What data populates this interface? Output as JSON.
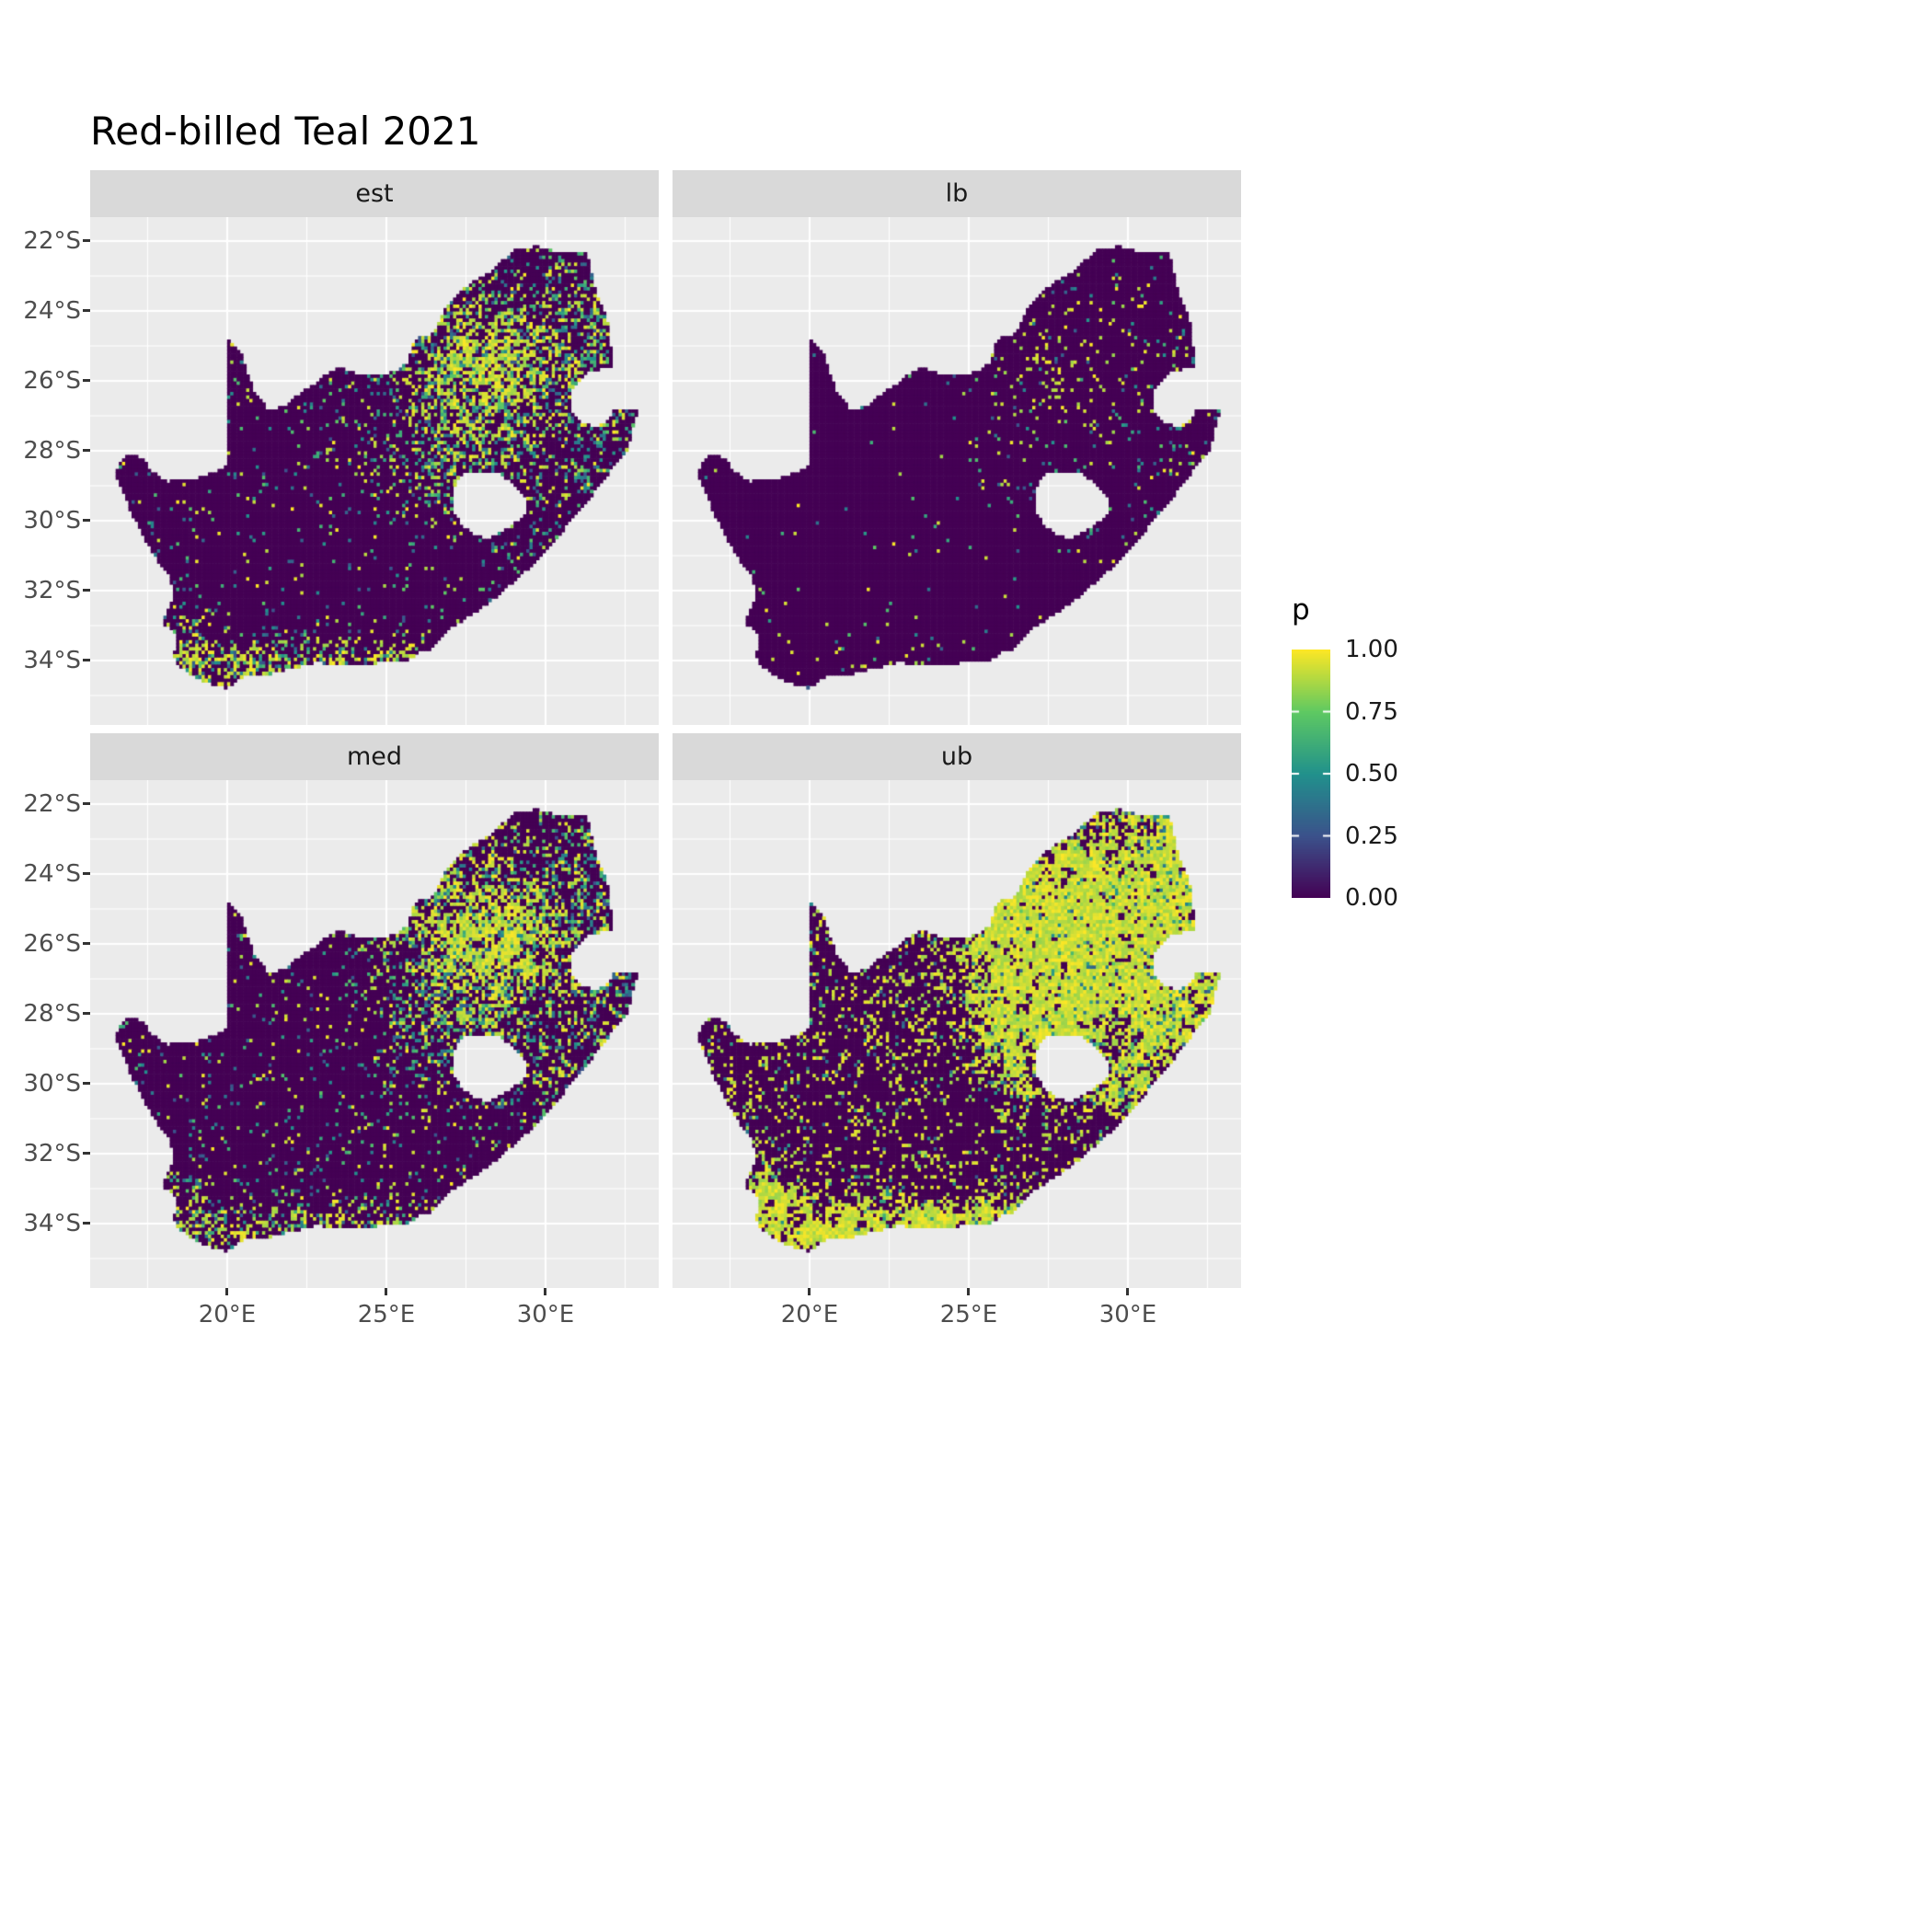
{
  "title": "Red-billed Teal 2021",
  "colors": {
    "panel_bg": "#EBEBEB",
    "strip_bg": "#D9D9D9",
    "grid": "#FFFFFF",
    "axis_text": "#4D4D4D",
    "strip_text": "#1A1A1A",
    "title_text": "#000000",
    "map_zero_fill": "#440154"
  },
  "chart_data": {
    "type": "heatmap",
    "subtype": "faceted-raster-map",
    "title": "Red-billed Teal 2021",
    "region": "South Africa",
    "facets": [
      {
        "label": "est"
      },
      {
        "label": "lb"
      },
      {
        "label": "med"
      },
      {
        "label": "ub"
      }
    ],
    "x_axis": {
      "ticks": [
        {
          "label": "20°E",
          "value": 20
        },
        {
          "label": "25°E",
          "value": 25
        },
        {
          "label": "30°E",
          "value": 30
        }
      ],
      "range": [
        15.694,
        33.56
      ]
    },
    "y_axis": {
      "ticks": [
        {
          "label": "22°S",
          "value": -22
        },
        {
          "label": "24°S",
          "value": -24
        },
        {
          "label": "26°S",
          "value": -26
        },
        {
          "label": "28°S",
          "value": -28
        },
        {
          "label": "30°S",
          "value": -30
        },
        {
          "label": "32°S",
          "value": -32
        },
        {
          "label": "34°S",
          "value": -34
        }
      ],
      "range": [
        -35.84,
        -21.316
      ]
    },
    "legend": {
      "title": "p",
      "ticks": [
        {
          "label": "1.00",
          "value": 1.0
        },
        {
          "label": "0.75",
          "value": 0.75
        },
        {
          "label": "0.50",
          "value": 0.5
        },
        {
          "label": "0.25",
          "value": 0.25
        },
        {
          "label": "0.00",
          "value": 0.0
        }
      ],
      "palette": "viridis",
      "palette_stops": [
        [
          "0.00",
          "#440154"
        ],
        [
          "0.25",
          "#3B528B"
        ],
        [
          "0.50",
          "#21918C"
        ],
        [
          "0.75",
          "#5EC962"
        ],
        [
          "1.00",
          "#FDE725"
        ]
      ]
    },
    "cell_size_deg": 0.1,
    "outline": [
      [
        16.45,
        -28.58
      ],
      [
        16.9,
        -28.08
      ],
      [
        17.35,
        -28.2
      ],
      [
        17.6,
        -28.55
      ],
      [
        18.1,
        -28.87
      ],
      [
        18.75,
        -28.82
      ],
      [
        19.3,
        -28.72
      ],
      [
        19.98,
        -28.43
      ],
      [
        19.98,
        -24.77
      ],
      [
        20.45,
        -25.25
      ],
      [
        20.65,
        -25.85
      ],
      [
        20.85,
        -26.3
      ],
      [
        21.3,
        -26.85
      ],
      [
        21.8,
        -26.7
      ],
      [
        22.2,
        -26.4
      ],
      [
        22.65,
        -26.15
      ],
      [
        22.9,
        -25.95
      ],
      [
        23.5,
        -25.6
      ],
      [
        24.05,
        -25.78
      ],
      [
        24.7,
        -25.82
      ],
      [
        25.35,
        -25.72
      ],
      [
        25.65,
        -25.48
      ],
      [
        25.9,
        -24.8
      ],
      [
        26.45,
        -24.65
      ],
      [
        26.85,
        -23.9
      ],
      [
        27.2,
        -23.55
      ],
      [
        27.75,
        -23.12
      ],
      [
        28.25,
        -22.87
      ],
      [
        29.05,
        -22.22
      ],
      [
        29.7,
        -22.15
      ],
      [
        30.3,
        -22.3
      ],
      [
        31.3,
        -22.35
      ],
      [
        31.6,
        -23.55
      ],
      [
        31.85,
        -24.0
      ],
      [
        31.98,
        -24.45
      ],
      [
        32.05,
        -25.1
      ],
      [
        32.05,
        -25.61
      ],
      [
        31.35,
        -25.72
      ],
      [
        30.82,
        -26.25
      ],
      [
        30.82,
        -26.85
      ],
      [
        31.15,
        -27.2
      ],
      [
        31.6,
        -27.32
      ],
      [
        31.97,
        -27.1
      ],
      [
        32.12,
        -26.86
      ],
      [
        32.89,
        -26.86
      ],
      [
        32.55,
        -28.0
      ],
      [
        32.0,
        -28.6
      ],
      [
        31.35,
        -29.4
      ],
      [
        30.65,
        -30.15
      ],
      [
        30.05,
        -30.85
      ],
      [
        29.35,
        -31.45
      ],
      [
        28.55,
        -32.1
      ],
      [
        27.8,
        -32.6
      ],
      [
        27.05,
        -33.05
      ],
      [
        26.45,
        -33.65
      ],
      [
        25.95,
        -33.78
      ],
      [
        25.65,
        -34.03
      ],
      [
        25.0,
        -33.97
      ],
      [
        24.45,
        -34.15
      ],
      [
        23.4,
        -34.1
      ],
      [
        22.8,
        -34.05
      ],
      [
        22.1,
        -34.2
      ],
      [
        21.2,
        -34.42
      ],
      [
        20.5,
        -34.45
      ],
      [
        19.98,
        -34.8
      ],
      [
        19.3,
        -34.62
      ],
      [
        18.82,
        -34.37
      ],
      [
        18.45,
        -34.12
      ],
      [
        18.3,
        -33.85
      ],
      [
        18.45,
        -33.3
      ],
      [
        17.95,
        -32.9
      ],
      [
        18.3,
        -32.25
      ],
      [
        18.22,
        -31.66
      ],
      [
        17.6,
        -30.85
      ],
      [
        17.05,
        -29.9
      ],
      [
        16.75,
        -29.25
      ]
    ],
    "lesotho_hole": [
      [
        27.05,
        -29.1
      ],
      [
        27.4,
        -28.62
      ],
      [
        27.95,
        -28.58
      ],
      [
        28.5,
        -28.62
      ],
      [
        28.95,
        -28.9
      ],
      [
        29.3,
        -29.25
      ],
      [
        29.45,
        -29.6
      ],
      [
        29.25,
        -29.95
      ],
      [
        28.8,
        -30.2
      ],
      [
        28.2,
        -30.52
      ],
      [
        27.7,
        -30.4
      ],
      [
        27.3,
        -30.05
      ],
      [
        27.05,
        -29.6
      ]
    ],
    "facet_params": {
      "est": {
        "base": 0.055,
        "hot": 0.95,
        "hot2": 0.35,
        "coast": 0.55,
        "east": 0.28,
        "yellow_frac": 0.32,
        "blob_lo": 0.45,
        "blob_hi": 1.2,
        "seed": 1
      },
      "lb": {
        "base": 0.012,
        "hot": 0.16,
        "hot2": 0.05,
        "coast": 0.07,
        "east": 0.07,
        "yellow_frac": 0.35,
        "blob_lo": 0.5,
        "blob_hi": 1.1,
        "seed": 2
      },
      "med": {
        "base": 0.08,
        "hot": 1.0,
        "hot2": 0.4,
        "coast": 0.5,
        "east": 0.33,
        "yellow_frac": 0.38,
        "blob_lo": 0.45,
        "blob_hi": 1.2,
        "seed": 3
      },
      "ub": {
        "base": 0.16,
        "hot": 2.2,
        "hot2": 0.8,
        "coast": 1.1,
        "east": 0.8,
        "yellow_frac": 0.82,
        "blob_lo": 0.05,
        "blob_hi": 2.0,
        "seed": 4
      }
    }
  }
}
